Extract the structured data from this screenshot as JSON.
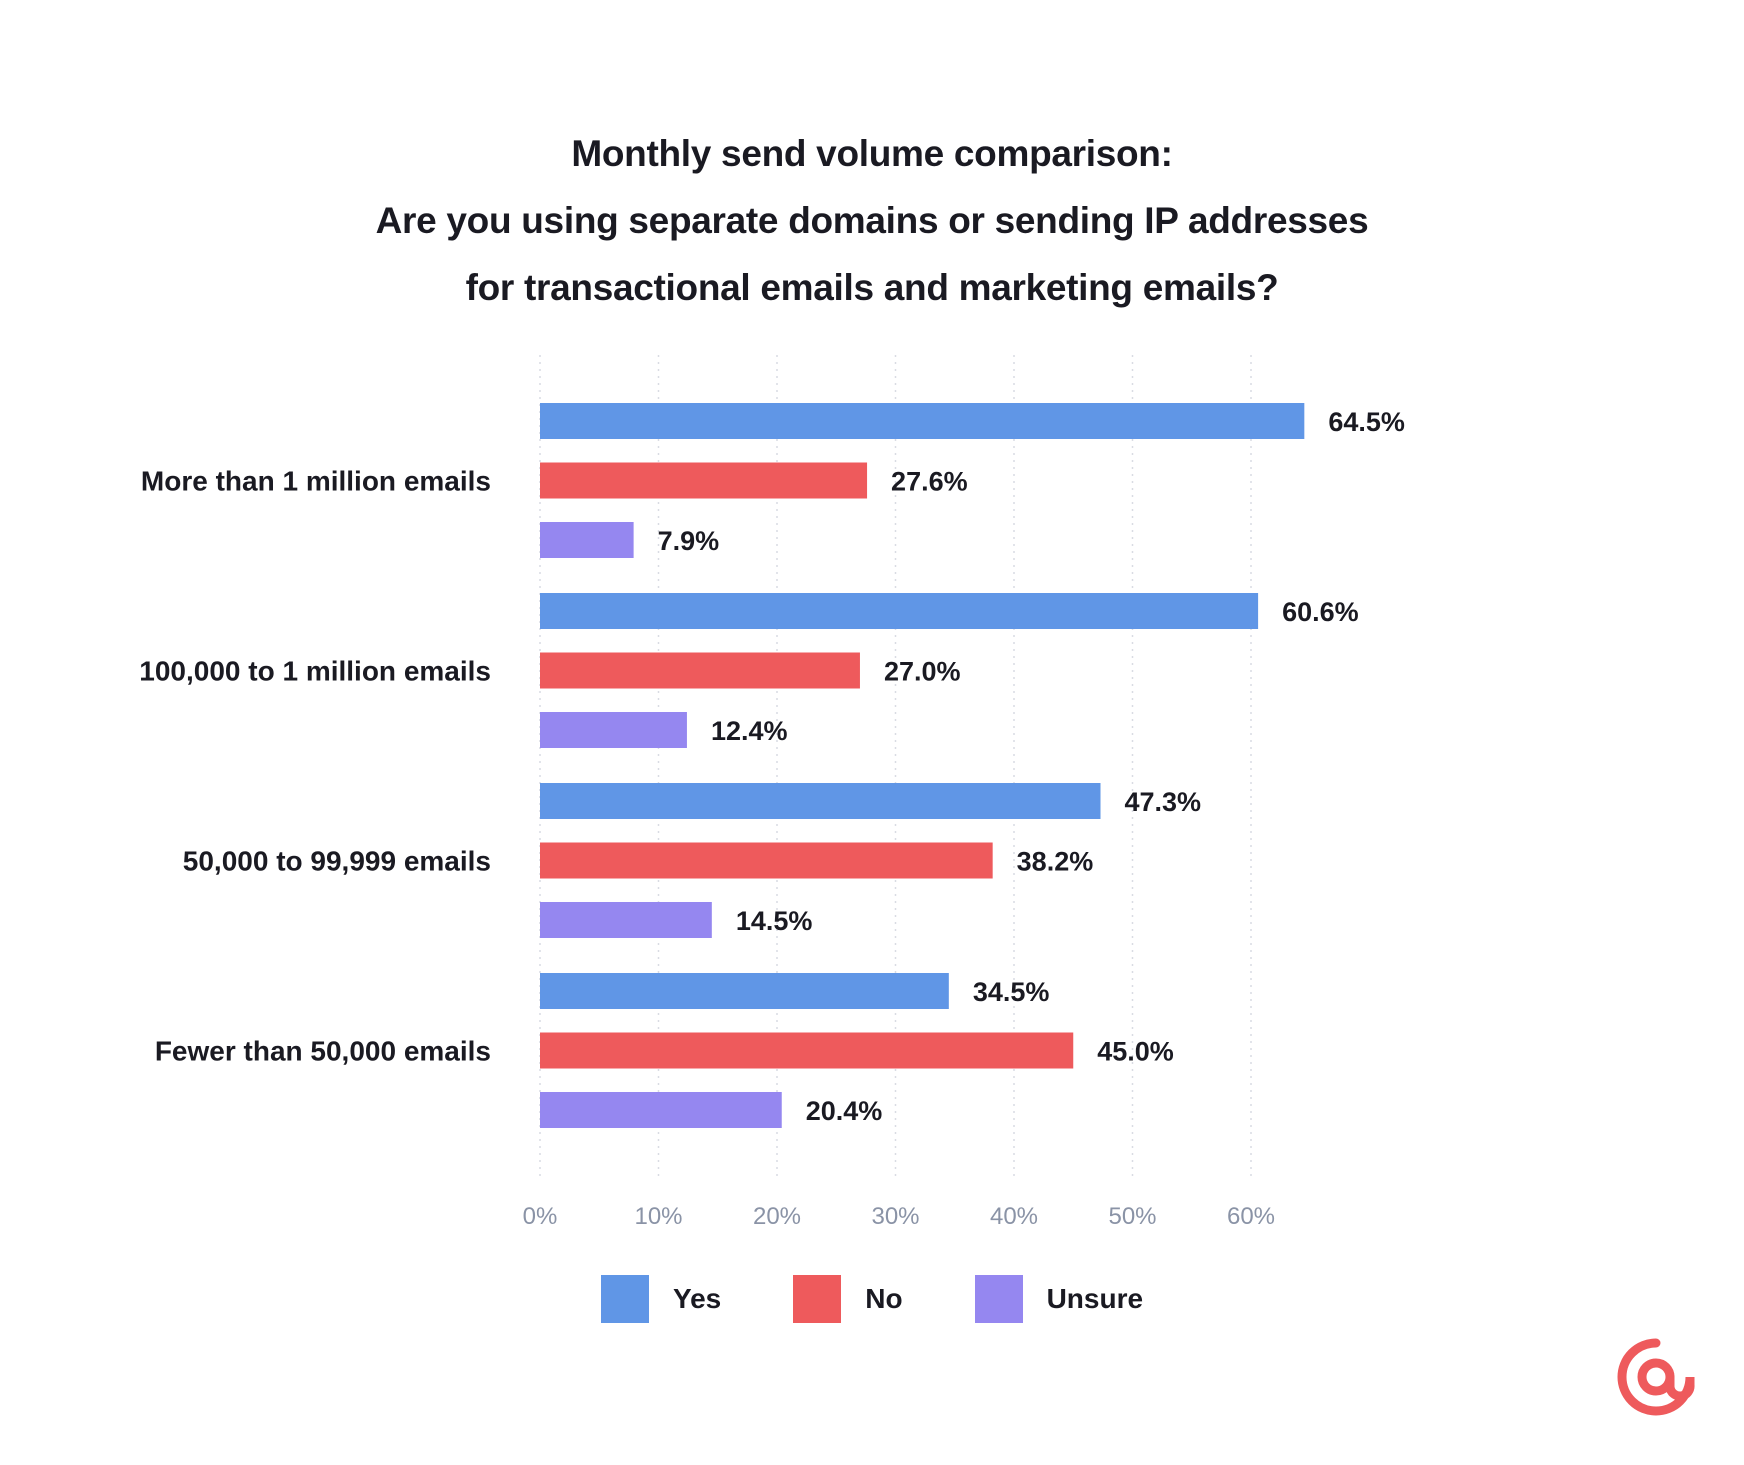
{
  "title_lines": [
    "Monthly send volume comparison:",
    "Are you using separate domains or sending IP addresses",
    "for transactional emails and marketing emails?"
  ],
  "chart_data": {
    "type": "bar",
    "orientation": "horizontal",
    "categories": [
      "More than 1 million emails",
      "100,000 to 1 million emails",
      "50,000 to 99,999 emails",
      "Fewer than 50,000 emails"
    ],
    "series": [
      {
        "name": "Yes",
        "color": "#6096e6",
        "values": [
          64.5,
          60.6,
          47.3,
          34.5
        ]
      },
      {
        "name": "No",
        "color": "#ee5a5c",
        "values": [
          27.6,
          27.0,
          38.2,
          45.0
        ]
      },
      {
        "name": "Unsure",
        "color": "#9587f0",
        "values": [
          7.9,
          12.4,
          14.5,
          20.4
        ]
      }
    ],
    "value_suffix": "%",
    "xlim": [
      0,
      70
    ],
    "xticks": [
      "0%",
      "10%",
      "20%",
      "30%",
      "40%",
      "50%",
      "60%"
    ],
    "grid": "vertical-dotted",
    "legend_placement": "bottom-center"
  },
  "logo": {
    "name": "at-sign-icon",
    "color": "#ee5a5c"
  }
}
